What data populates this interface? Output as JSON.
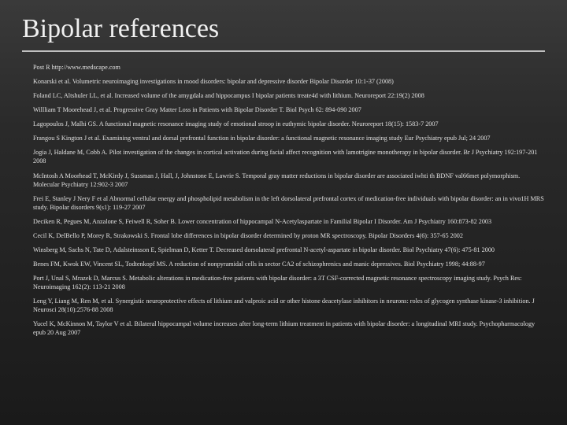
{
  "title": "Bipolar references",
  "title_fontsize": 34,
  "title_color": "#f0f0f0",
  "background_gradient": [
    "#3a3a3a",
    "#2a2a2a",
    "#1a1a1a"
  ],
  "rule_color": "#c0c0c0",
  "ref_fontsize": 8.2,
  "ref_color": "#e0e0e0",
  "references": [
    "Post R http://www.medscape.com",
    "Konarski et al. Volumetric neuroimaging investigations in mood disorders: bipolar and depressive disorder Bipolar Disorder 10:1-37 (2008)",
    "Foland LC, Altshuler LL, et al. Increased volume of the amygdala and hippocampus I bipolar patients treate4d with lithium. Neuroreport 22:19(2) 2008",
    "Willliam T Moorehead J, et al. Progressive Gray Matter Loss in Patients with Bipolar Disorder T. Biol Psych 62: 894-090 2007",
    "Lagopoulos J, Malhi GS. A functional magnetic resonance imaging study of emotional stroop in euthymic bipolar disorder. Neuroreport 18(15): 1583-7 2007",
    "Frangou S Kington J et al. Examining ventral and dorsal prefrontal function in bipolar disorder: a functional magnetic resonance imaging study Eur Psychiatry epub Jul; 24 2007",
    "Jogia J, Haldane M, Cobb A. Pilot investigation of the changes in cortical activation during facial affect recognition with lamotrigine monotherapy in bipolar disorder. Br J Psychiatry 192:197-201 2008",
    "McIntosh A Moorhead T, McKirdy J, Sussman J, Hall, J, Johnstone E, Lawrie S. Temporal gray matter reductions in bipolar disorder are associated iwhti th BDNF val66met polymorphism. Molecular Psychiatry 12:902-3 2007",
    "Frei E, Stanley J Nery F et al Abnormal cellular energy and phospholipid metabolism in the left dorsolateral prefrontal cortex of medication-free individuals with bipolar disorder: an in vivo1H MRS study. Bipolar disorders 9(s1): 119-27 2007",
    "Deciken R, Pegues M, Anzalone S, Feiwell R, Soher B. Lower concentration of hippocampal N-Acetylaspartate in Familial Bipolar I Disorder. Am J Psychiatry 160:873-82 2003",
    "Cecil K, DelBello P, Morey R, Strakowski S. Frontal lobe differences in bipolar disorder determined by proton MR spectroscopy. Bipolar Disorders 4(6): 357-65 2002",
    "Winsberg M, Sachs N, Tate D, Adalsteinsson E, Spielman D, Ketter T. Decreased dorsolateral prefrontal N-acetyl-aspartate in bipolar disorder. Biol Psychiatry 47(6): 475-81 2000",
    "Benes FM, Kwok EW, Vincent SL, Todtenkopf MS. A reduction of nonpyramidal cells in sector CA2 of schizophrenics and manic depressives. Biol Psychiatry 1998; 44:88-97",
    "Port J, Unal S, Mrazek D, Marcus S. Metabolic alterations in medication-free patients with bipolar disorder: a 3T CSF-corrected magnetic resonance spectroscopy imaging study. Psych Res: Neuroimaging 162(2): 113-21 2008",
    "Leng Y, Liang M, Ren M, et al. Synergistic neuroprotective effects of lithium and valproic acid or other histone deacetylase inhibitors in neurons: roles of glycogen synthase kinase-3 inhibition. J Neurosci 28(10):2576-88 2008",
    "Yucel K, McKinnon M, Taylor V et al. Bilateral hippocampal volume increases after long-term lithium treatment in patients with bipolar disorder: a longitudinal MRI study. Psychopharmacology epub 20 Aug 2007"
  ]
}
